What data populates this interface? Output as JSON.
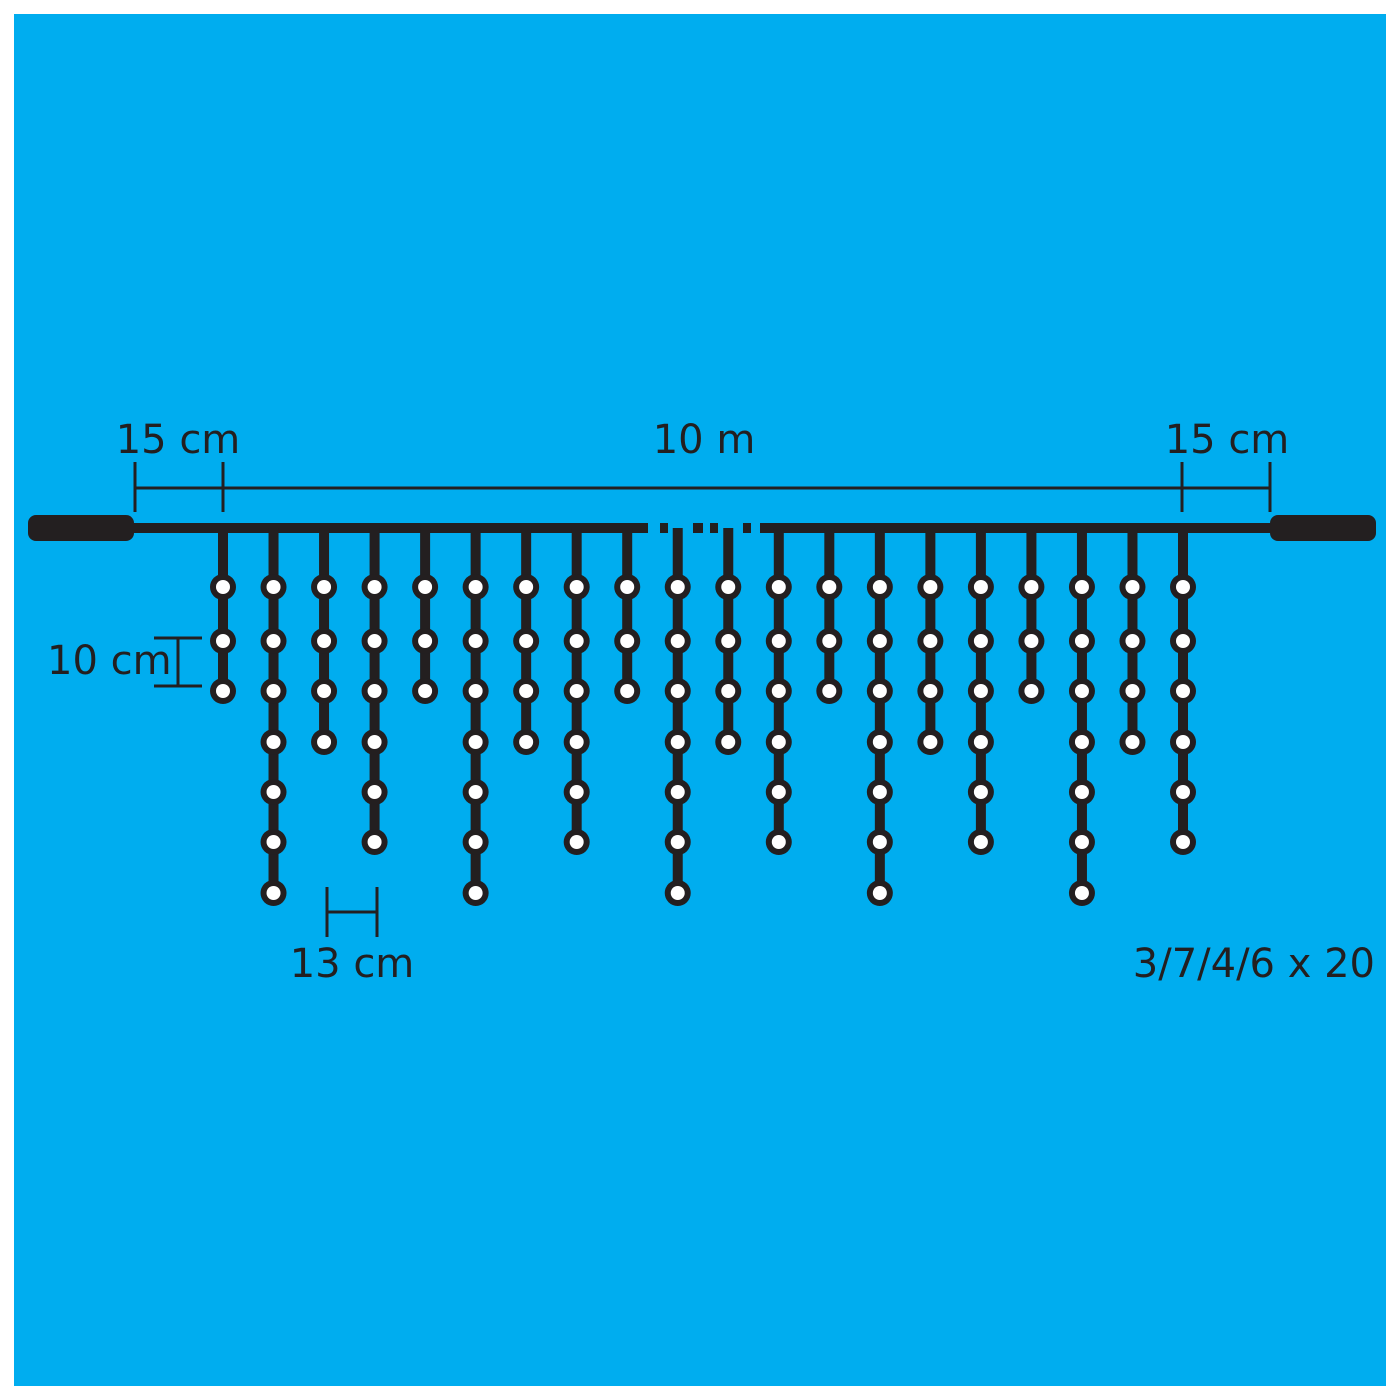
{
  "colors": {
    "background": "#00adef",
    "wire": "#231f20",
    "bulb": "#ffffff"
  },
  "labels": {
    "left_lead": "15 cm",
    "total_length": "10 m",
    "right_lead": "15 cm",
    "vertical_spacing": "10 cm",
    "horizontal_spacing": "13 cm",
    "configuration": "3/7/4/6 x 20"
  },
  "strands": {
    "count": 20,
    "pattern": [
      3,
      7,
      4,
      6
    ]
  }
}
